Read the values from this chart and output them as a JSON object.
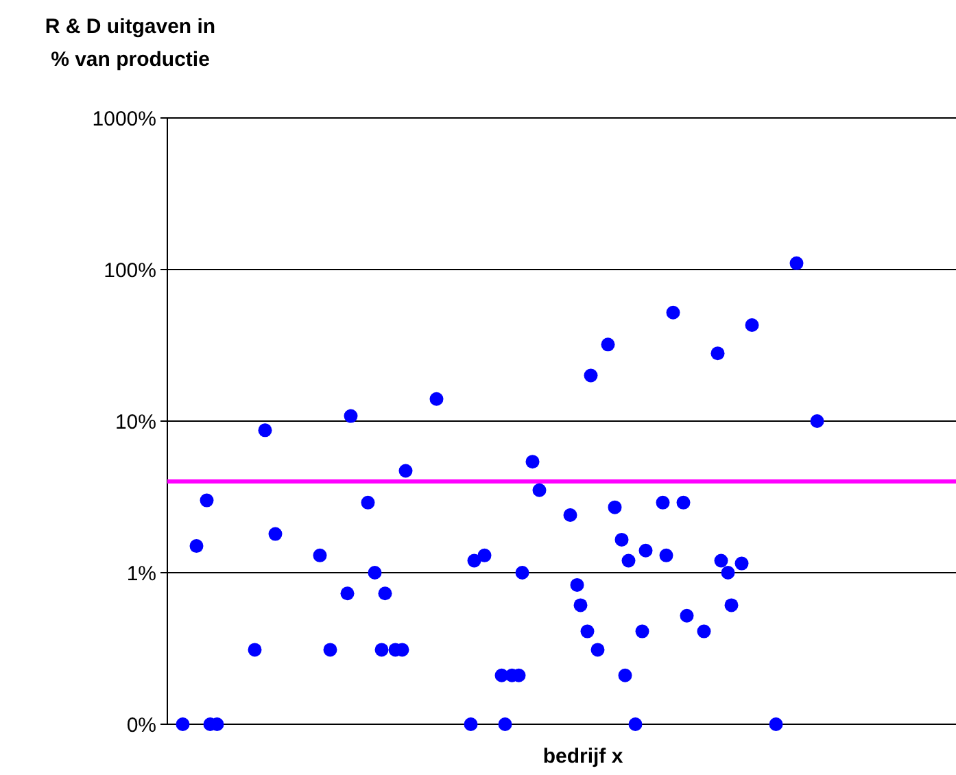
{
  "chart_data": {
    "type": "scatter",
    "ylabel": "R & D uitgaven in\n% van productie",
    "xlabel": "bedrijf x",
    "log": "y",
    "grid": "y",
    "marker": "circle",
    "tick_labels": "y",
    "categories": [
      null,
      null,
      null,
      null,
      null,
      null,
      null,
      null,
      null,
      null,
      null,
      null,
      null,
      null,
      null,
      null,
      null,
      null,
      null,
      null,
      null,
      null,
      null,
      null,
      null,
      null,
      null,
      null,
      null,
      null,
      null,
      null,
      null,
      null,
      null,
      null,
      null,
      null,
      null,
      null,
      null,
      null,
      null,
      null,
      null,
      null,
      null,
      null,
      null,
      null,
      null,
      null,
      null,
      null,
      null,
      null,
      null,
      null,
      null,
      null,
      null,
      null,
      null,
      null,
      null,
      null,
      null,
      null,
      null,
      null,
      null,
      null,
      null,
      null,
      null,
      null,
      null,
      null,
      null,
      null,
      null,
      null,
      null,
      null,
      null,
      null,
      null,
      null,
      null,
      null,
      null,
      null,
      null,
      null,
      null,
      null,
      null,
      null,
      null,
      null,
      null,
      null,
      null,
      null,
      null,
      null,
      null,
      null,
      null,
      null,
      null,
      null,
      null,
      null,
      null,
      null,
      null,
      null,
      null,
      null,
      null,
      null,
      null,
      null,
      null,
      null,
      null,
      null,
      null,
      null,
      null,
      null,
      null,
      null,
      null,
      null,
      null,
      null,
      null,
      null,
      null,
      null,
      null,
      null,
      null,
      null,
      null,
      null,
      null,
      null,
      null,
      null,
      null,
      null,
      null,
      null,
      null,
      null,
      null,
      null,
      null,
      null,
      null,
      null,
      null,
      null,
      null,
      null,
      null,
      null,
      null,
      null,
      null,
      null,
      null,
      null,
      null,
      null,
      null,
      null,
      null,
      null,
      null,
      null,
      null,
      null,
      null,
      null,
      null,
      null,
      null,
      null,
      null,
      null,
      null,
      null,
      null,
      null,
      null,
      null,
      null,
      null,
      null,
      null,
      null,
      null,
      null,
      null,
      null,
      null,
      null,
      null,
      null,
      null,
      null,
      null,
      null,
      null,
      null,
      null,
      null,
      null,
      null,
      null,
      null,
      null,
      null,
      null,
      null,
      null
    ],
    "ylim": [
      0.1,
      1000
    ],
    "yticks": [
      {
        "value": 0.1,
        "label": "0%"
      },
      {
        "value": 1,
        "label": "1%"
      },
      {
        "value": 10,
        "label": "10%"
      },
      {
        "value": 100,
        "label": "100%"
      },
      {
        "value": 1000,
        "label": "1000%"
      }
    ],
    "ref_lines": [
      {
        "axis": "y",
        "value": 4,
        "color": "#ff00ff",
        "line_style": "solid"
      }
    ],
    "series": [
      {
        "color": "#0000ff",
        "values": [
          null,
          null,
          null,
          null,
          0.1,
          null,
          null,
          null,
          1.5,
          null,
          null,
          3.0,
          0.1,
          null,
          0.1,
          null,
          null,
          null,
          null,
          null,
          null,
          null,
          null,
          null,
          null,
          0.31,
          null,
          null,
          8.7,
          null,
          null,
          1.8,
          null,
          null,
          null,
          null,
          null,
          null,
          null,
          null,
          null,
          null,
          null,
          null,
          1.3,
          null,
          null,
          0.31,
          null,
          null,
          null,
          null,
          0.73,
          10.8,
          null,
          null,
          null,
          null,
          2.9,
          null,
          1.0,
          null,
          0.31,
          0.73,
          null,
          null,
          0.31,
          null,
          0.31,
          4.7,
          null,
          null,
          null,
          null,
          null,
          null,
          null,
          null,
          14,
          null,
          null,
          null,
          null,
          null,
          null,
          null,
          null,
          null,
          0.1,
          1.2,
          null,
          null,
          1.3,
          null,
          null,
          null,
          null,
          0.21,
          0.1,
          null,
          0.21,
          null,
          0.21,
          1.0,
          null,
          null,
          5.4,
          null,
          3.5,
          null,
          null,
          null,
          null,
          null,
          null,
          null,
          null,
          2.4,
          null,
          0.83,
          0.61,
          null,
          0.41,
          20,
          null,
          0.31,
          null,
          null,
          32,
          null,
          2.7,
          null,
          1.65,
          0.21,
          1.2,
          null,
          0.1,
          null,
          0.41,
          1.4,
          null,
          null,
          null,
          null,
          2.9,
          1.3,
          null,
          52,
          null,
          null,
          2.9,
          0.52,
          null,
          null,
          null,
          null,
          0.41,
          null,
          null,
          null,
          28,
          1.2,
          null,
          1.0,
          0.61,
          null,
          null,
          1.15,
          null,
          null,
          43,
          null,
          null,
          null,
          null,
          null,
          null,
          0.1,
          null,
          null,
          null,
          null,
          null,
          110,
          null,
          null,
          null,
          null,
          null,
          10,
          null,
          null,
          null,
          null,
          null,
          null,
          null,
          null,
          null,
          null,
          null,
          null,
          null,
          null,
          null,
          null,
          null,
          null,
          null,
          null,
          null,
          null,
          null,
          null,
          null,
          null,
          null,
          null,
          null,
          null,
          null,
          null,
          null,
          null,
          null,
          null,
          null,
          null,
          null,
          null
        ]
      }
    ]
  }
}
